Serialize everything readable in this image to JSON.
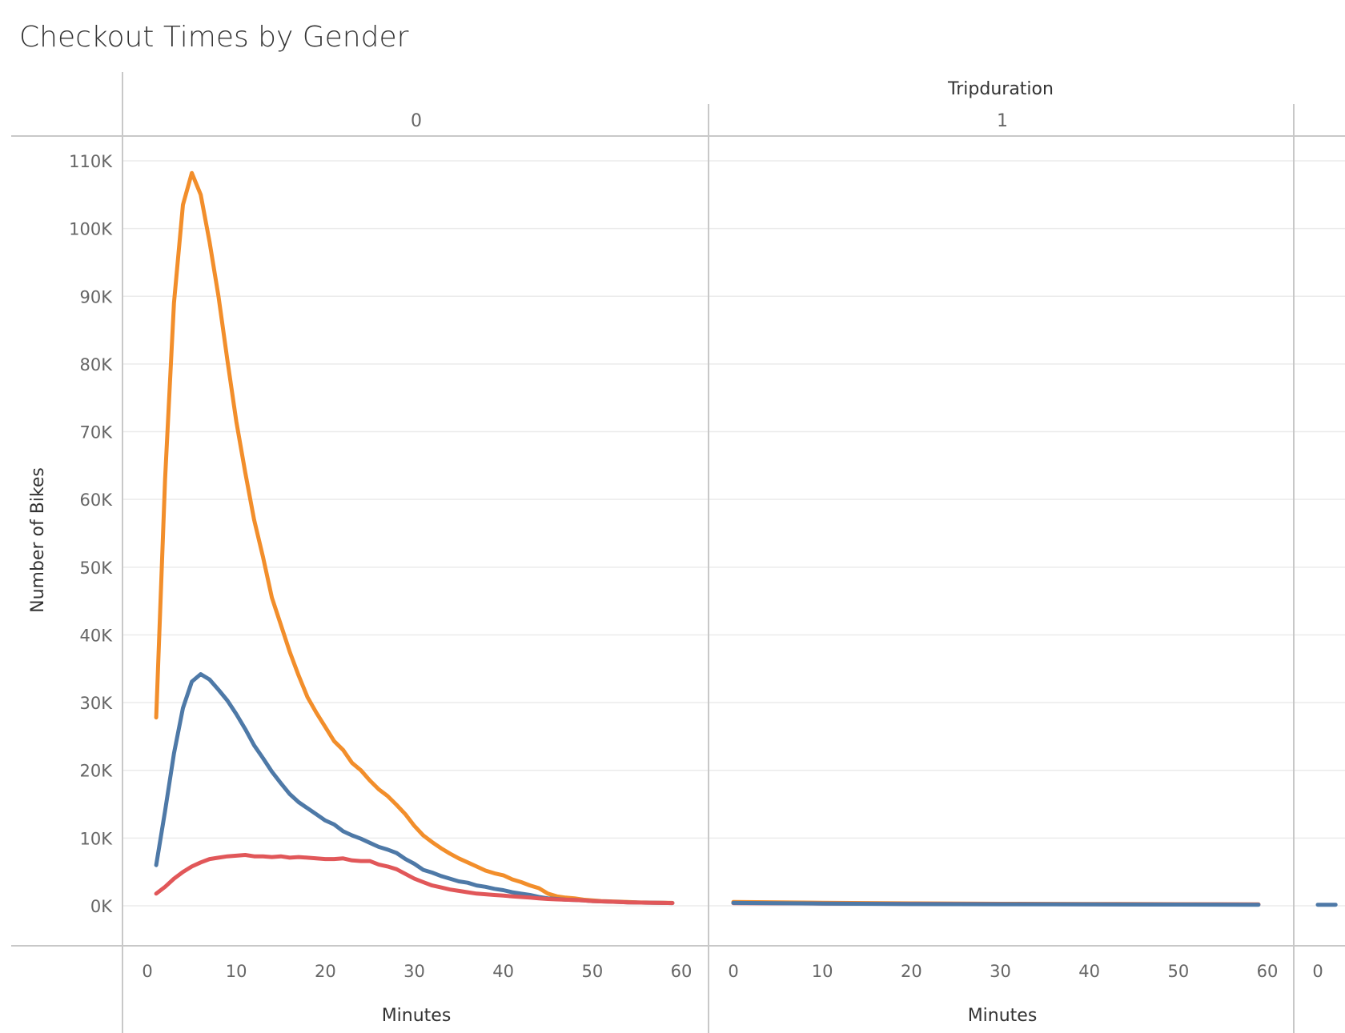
{
  "chart_data": {
    "type": "line",
    "title": "Checkout Times by Gender",
    "column_header_label": "Tripduration",
    "xlabel": "Minutes",
    "ylabel": "Number of Bikes",
    "ylim": [
      0,
      110000
    ],
    "y_ticks": [
      "0K",
      "10K",
      "20K",
      "30K",
      "40K",
      "50K",
      "60K",
      "70K",
      "80K",
      "90K",
      "100K",
      "110K"
    ],
    "y_tick_values": [
      0,
      10000,
      20000,
      30000,
      40000,
      50000,
      60000,
      70000,
      80000,
      90000,
      100000,
      110000
    ],
    "xlim": [
      0,
      60
    ],
    "x_tick_values": [
      0,
      10,
      20,
      30,
      40,
      50,
      60
    ],
    "x_ticks": [
      "0",
      "10",
      "20",
      "30",
      "40",
      "50",
      "60"
    ],
    "grid": true,
    "panels": [
      {
        "label": "0",
        "series": [
          {
            "color": "#f28e2b",
            "x": [
              1,
              2,
              3,
              4,
              5,
              6,
              7,
              8,
              9,
              10,
              11,
              12,
              13,
              14,
              15,
              16,
              17,
              18,
              19,
              20,
              21,
              22,
              23,
              24,
              25,
              26,
              27,
              28,
              29,
              30,
              31,
              32,
              33,
              34,
              35,
              36,
              37,
              38,
              39,
              40,
              41,
              42,
              43,
              44,
              45,
              46,
              47,
              48,
              49,
              50,
              51,
              52,
              53,
              54,
              55,
              56,
              57,
              58,
              59
            ],
            "values": [
              27800,
              63000,
              89000,
              103500,
              108200,
              105000,
              98000,
              90000,
              80500,
              71500,
              64000,
              57000,
              51500,
              45500,
              41500,
              37500,
              34000,
              30800,
              28500,
              26400,
              24300,
              23000,
              21100,
              20000,
              18500,
              17200,
              16200,
              14900,
              13500,
              11800,
              10400,
              9400,
              8500,
              7700,
              7000,
              6400,
              5800,
              5200,
              4800,
              4500,
              3900,
              3500,
              3000,
              2600,
              1800,
              1400,
              1200,
              1100,
              900,
              800,
              700,
              650,
              600,
              550,
              500,
              480,
              460,
              440,
              420
            ]
          },
          {
            "color": "#4e79a7",
            "x": [
              1,
              2,
              3,
              4,
              5,
              6,
              7,
              8,
              9,
              10,
              11,
              12,
              13,
              14,
              15,
              16,
              17,
              18,
              19,
              20,
              21,
              22,
              23,
              24,
              25,
              26,
              27,
              28,
              29,
              30,
              31,
              32,
              33,
              34,
              35,
              36,
              37,
              38,
              39,
              40,
              41,
              42,
              43,
              44,
              45,
              46,
              47,
              48,
              49,
              50,
              51,
              52,
              53,
              54,
              55,
              56,
              57,
              58,
              59
            ],
            "values": [
              6000,
              14000,
              22500,
              29200,
              33100,
              34200,
              33400,
              31900,
              30300,
              28300,
              26100,
              23700,
              21800,
              19800,
              18100,
              16500,
              15300,
              14400,
              13500,
              12600,
              12000,
              11000,
              10400,
              9900,
              9300,
              8700,
              8300,
              7800,
              6900,
              6200,
              5300,
              4900,
              4400,
              4000,
              3600,
              3400,
              3000,
              2800,
              2500,
              2300,
              2000,
              1800,
              1600,
              1300,
              1100,
              1000,
              900,
              850,
              800,
              700,
              650,
              600,
              550,
              500,
              480,
              460,
              440,
              420,
              400
            ]
          },
          {
            "color": "#e15759",
            "x": [
              1,
              2,
              3,
              4,
              5,
              6,
              7,
              8,
              9,
              10,
              11,
              12,
              13,
              14,
              15,
              16,
              17,
              18,
              19,
              20,
              21,
              22,
              23,
              24,
              25,
              26,
              27,
              28,
              29,
              30,
              31,
              32,
              33,
              34,
              35,
              36,
              37,
              38,
              39,
              40,
              41,
              42,
              43,
              44,
              45,
              46,
              47,
              48,
              49,
              50,
              51,
              52,
              53,
              54,
              55,
              56,
              57,
              58,
              59
            ],
            "values": [
              1800,
              2800,
              4000,
              5000,
              5800,
              6400,
              6900,
              7100,
              7300,
              7400,
              7500,
              7300,
              7300,
              7200,
              7300,
              7100,
              7200,
              7100,
              7000,
              6900,
              6900,
              7000,
              6700,
              6600,
              6600,
              6100,
              5800,
              5400,
              4700,
              4000,
              3500,
              3000,
              2700,
              2400,
              2200,
              2000,
              1800,
              1700,
              1600,
              1500,
              1400,
              1300,
              1200,
              1100,
              1000,
              950,
              900,
              850,
              800,
              700,
              650,
              600,
              550,
              500,
              480,
              460,
              440,
              420,
              400
            ]
          }
        ]
      },
      {
        "label": "1",
        "series": [
          {
            "color": "#f28e2b",
            "x": [
              0,
              10,
              20,
              30,
              40,
              50,
              59
            ],
            "values": [
              550,
              450,
              350,
              300,
              270,
              240,
              200
            ]
          },
          {
            "color": "#e15759",
            "x": [
              0,
              10,
              20,
              30,
              40,
              50,
              59
            ],
            "values": [
              380,
              330,
              280,
              250,
              230,
              210,
              190
            ]
          },
          {
            "color": "#4e79a7",
            "x": [
              0,
              10,
              20,
              30,
              40,
              50,
              59
            ],
            "values": [
              420,
              330,
              250,
              220,
              200,
              180,
              150
            ]
          }
        ]
      },
      {
        "label": "",
        "series": [
          {
            "color": "#4e79a7",
            "x": [
              0,
              2
            ],
            "values": [
              150,
              150
            ]
          }
        ]
      }
    ]
  }
}
